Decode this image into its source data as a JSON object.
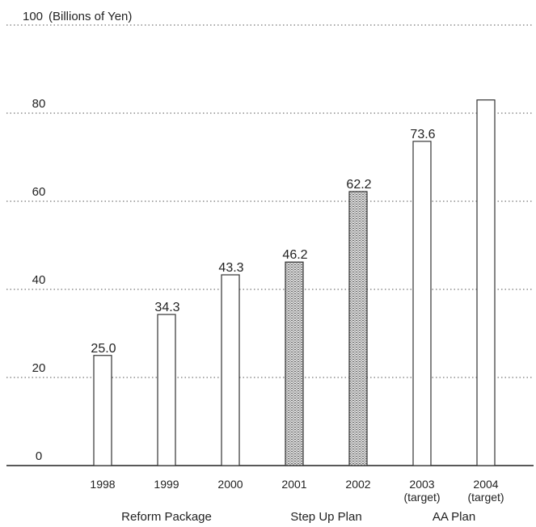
{
  "chart_data": {
    "type": "bar",
    "ylabel": "(Billions of Yen)",
    "ylim": [
      0,
      100
    ],
    "yticks": [
      0,
      20,
      40,
      60,
      80,
      100
    ],
    "grid": true,
    "categories": [
      {
        "year": "1998",
        "note": ""
      },
      {
        "year": "1999",
        "note": ""
      },
      {
        "year": "2000",
        "note": ""
      },
      {
        "year": "2001",
        "note": ""
      },
      {
        "year": "2002",
        "note": ""
      },
      {
        "year": "2003",
        "note": "(target)"
      },
      {
        "year": "2004",
        "note": "(target)"
      }
    ],
    "values": [
      25.0,
      34.3,
      43.3,
      46.2,
      62.2,
      73.6,
      83
    ],
    "data_labels": [
      "25.0",
      "34.3",
      "43.3",
      "46.2",
      "62.2",
      "73.6",
      ""
    ],
    "shaded": [
      false,
      false,
      false,
      true,
      true,
      false,
      false
    ],
    "phases": [
      {
        "label": "Reform Package",
        "from": 0,
        "to": 2
      },
      {
        "label": "Step Up Plan",
        "from": 3,
        "to": 4
      },
      {
        "label": "AA Plan",
        "from": 5,
        "to": 6
      }
    ]
  }
}
